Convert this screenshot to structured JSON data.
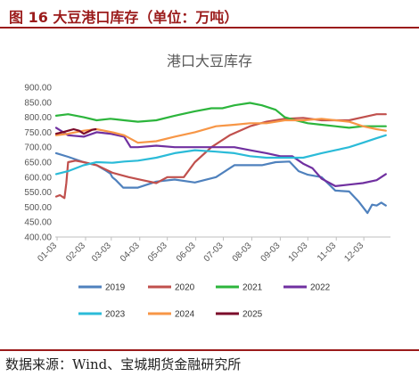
{
  "header": {
    "figure_label": "图 16 大豆港口库存（单位：万吨）"
  },
  "footer": {
    "source": "数据来源：Wind、宝城期货金融研究所"
  },
  "chart_data": {
    "type": "line",
    "title": "港口大豆库存",
    "xlabel": "",
    "ylabel": "",
    "ylim": [
      400,
      900
    ],
    "yticks": [
      400,
      450,
      500,
      550,
      600,
      650,
      700,
      750,
      800,
      850,
      900
    ],
    "ytick_labels": [
      "400.00",
      "450.00",
      "500.00",
      "550.00",
      "600.00",
      "650.00",
      "700.00",
      "750.00",
      "800.00",
      "850.00",
      "900.00"
    ],
    "xticks": [
      "01-03",
      "02-03",
      "03-03",
      "04-03",
      "05-03",
      "06-03",
      "07-03",
      "08-03",
      "09-03",
      "10-03",
      "11-03",
      "12-03"
    ],
    "grid": false,
    "legend_position": "bottom",
    "series": [
      {
        "name": "2019",
        "color": "#4f81bd",
        "x": [
          1,
          14,
          31,
          45,
          55,
          60,
          62,
          66,
          74,
          90,
          110,
          130,
          152,
          175,
          195,
          212,
          225,
          240,
          255,
          265,
          275,
          290,
          305,
          320,
          330,
          340,
          345,
          350,
          355,
          360
        ],
        "y": [
          680,
          668,
          650,
          640,
          622,
          612,
          600,
          590,
          565,
          565,
          585,
          592,
          582,
          600,
          640,
          640,
          640,
          650,
          652,
          620,
          608,
          600,
          555,
          552,
          520,
          480,
          508,
          505,
          515,
          505
        ]
      },
      {
        "name": "2020",
        "color": "#c0504d",
        "x": [
          1,
          5,
          10,
          12,
          14,
          22,
          31,
          45,
          62,
          80,
          95,
          110,
          122,
          140,
          152,
          170,
          190,
          212,
          230,
          250,
          270,
          290,
          305,
          320,
          335,
          350,
          360
        ],
        "y": [
          535,
          540,
          530,
          580,
          650,
          655,
          650,
          640,
          615,
          600,
          590,
          580,
          600,
          600,
          650,
          700,
          740,
          770,
          785,
          795,
          798,
          790,
          790,
          790,
          800,
          810,
          810
        ]
      },
      {
        "name": "2021",
        "color": "#2cb53c",
        "x": [
          1,
          14,
          31,
          45,
          60,
          75,
          90,
          110,
          130,
          152,
          170,
          182,
          195,
          212,
          225,
          240,
          250,
          262,
          275,
          290,
          305,
          320,
          335,
          350,
          360
        ],
        "y": [
          805,
          810,
          800,
          790,
          795,
          790,
          785,
          790,
          805,
          820,
          830,
          830,
          840,
          848,
          840,
          825,
          800,
          790,
          780,
          775,
          770,
          765,
          770,
          770,
          770
        ]
      },
      {
        "name": "2022",
        "color": "#7030a0",
        "x": [
          1,
          14,
          31,
          45,
          60,
          75,
          82,
          90,
          110,
          130,
          152,
          175,
          195,
          212,
          230,
          245,
          258,
          270,
          280,
          290,
          305,
          320,
          335,
          350,
          360
        ],
        "y": [
          765,
          740,
          735,
          750,
          745,
          735,
          700,
          700,
          705,
          700,
          700,
          700,
          700,
          690,
          680,
          670,
          670,
          645,
          630,
          595,
          570,
          575,
          580,
          590,
          610
        ]
      },
      {
        "name": "2023",
        "color": "#2bbbd8",
        "x": [
          1,
          14,
          31,
          45,
          62,
          75,
          90,
          110,
          130,
          152,
          175,
          195,
          212,
          230,
          250,
          270,
          290,
          305,
          320,
          335,
          350,
          360
        ],
        "y": [
          610,
          620,
          640,
          650,
          648,
          652,
          655,
          665,
          680,
          690,
          685,
          680,
          670,
          665,
          665,
          665,
          680,
          690,
          700,
          715,
          730,
          740
        ]
      },
      {
        "name": "2024",
        "color": "#f79646",
        "x": [
          1,
          14,
          31,
          45,
          62,
          75,
          90,
          110,
          130,
          152,
          175,
          195,
          212,
          230,
          250,
          270,
          290,
          305,
          320,
          335,
          350,
          360
        ],
        "y": [
          740,
          745,
          755,
          760,
          750,
          740,
          715,
          720,
          735,
          750,
          770,
          775,
          780,
          780,
          790,
          790,
          795,
          790,
          785,
          770,
          760,
          755
        ]
      },
      {
        "name": "2025",
        "color": "#7b0a2a",
        "x": [
          1,
          8,
          14,
          20,
          26,
          31,
          36,
          40,
          44
        ],
        "y": [
          745,
          750,
          755,
          760,
          755,
          745,
          752,
          758,
          760
        ]
      }
    ]
  }
}
